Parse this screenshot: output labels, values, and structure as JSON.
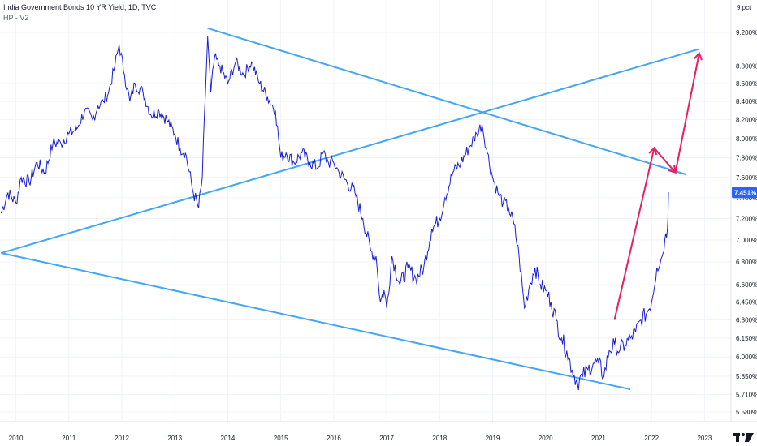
{
  "header": {
    "title": "India Government Bonds 10 YR Yield, 1D, TVC",
    "indicator": "HP - V2"
  },
  "scale_label": "9 pct",
  "colors": {
    "price_line": "#1a1fd6",
    "trendline": "#42a5f5",
    "arrow": "#e91e63",
    "badge": "#2962ff",
    "grid": "#f0f3fa"
  },
  "icons": {
    "logo": "tradingview-logo-icon"
  },
  "chart_data": {
    "type": "line",
    "title": "India Government Bonds 10 YR Yield, 1D, TVC",
    "xlabel": "",
    "ylabel": "",
    "log_scale": true,
    "xlim": [
      2009.7,
      2023.5
    ],
    "ylim": [
      5.51,
      9.6
    ],
    "x_ticks": [
      2010,
      2011,
      2012,
      2013,
      2014,
      2015,
      2016,
      2017,
      2018,
      2019,
      2020,
      2021,
      2022,
      2023
    ],
    "x_tick_labels": [
      "2010",
      "2011",
      "2012",
      "2013",
      "2014",
      "2015",
      "2016",
      "2017",
      "2018",
      "2019",
      "2020",
      "2021",
      "2022",
      "2023"
    ],
    "y_ticks": [
      5.58,
      5.71,
      5.85,
      6.0,
      6.15,
      6.3,
      6.45,
      6.6,
      6.8,
      7.0,
      7.2,
      7.4,
      7.6,
      7.8,
      8.0,
      8.2,
      8.4,
      8.6,
      8.8,
      9.2
    ],
    "y_tick_labels": [
      "5.580%",
      "5.710%",
      "5.850%",
      "6.000%",
      "6.150%",
      "6.300%",
      "6.450%",
      "6.600%",
      "6.800%",
      "7.000%",
      "7.200%",
      "7.400%",
      "7.600%",
      "7.800%",
      "8.000%",
      "8.200%",
      "8.400%",
      "8.600%",
      "8.800%",
      "9.200%"
    ],
    "grid": true,
    "last_value": 7.451,
    "last_value_label": "7.451%",
    "series": [
      {
        "x": [
          2009.72,
          2009.85,
          2010.0,
          2010.1,
          2010.25,
          2010.4,
          2010.55,
          2010.7,
          2010.85,
          2011.0,
          2011.15,
          2011.3,
          2011.45,
          2011.55,
          2011.65,
          2011.75,
          2011.85,
          2011.95,
          2012.05,
          2012.15,
          2012.25,
          2012.4,
          2012.55,
          2012.7,
          2012.85,
          2013.0,
          2013.1,
          2013.2,
          2013.35,
          2013.45,
          2013.52,
          2013.58,
          2013.62,
          2013.68,
          2013.75,
          2013.85,
          2014.0,
          2014.15,
          2014.3,
          2014.45,
          2014.6,
          2014.75,
          2014.9,
          2015.0,
          2015.1,
          2015.25,
          2015.4,
          2015.55,
          2015.7,
          2015.8,
          2015.9,
          2016.0,
          2016.1,
          2016.25,
          2016.4,
          2016.55,
          2016.7,
          2016.8,
          2016.88,
          2016.95,
          2017.0,
          2017.1,
          2017.25,
          2017.4,
          2017.55,
          2017.7,
          2017.85,
          2018.0,
          2018.1,
          2018.25,
          2018.4,
          2018.55,
          2018.7,
          2018.8,
          2018.9,
          2019.0,
          2019.1,
          2019.2,
          2019.3,
          2019.4,
          2019.5,
          2019.6,
          2019.7,
          2019.8,
          2019.9,
          2020.0,
          2020.1,
          2020.2,
          2020.3,
          2020.4,
          2020.5,
          2020.6,
          2020.7,
          2020.8,
          2020.9,
          2021.0,
          2021.1,
          2021.2,
          2021.3,
          2021.4,
          2021.5,
          2021.6,
          2021.7,
          2021.8,
          2021.9,
          2022.0,
          2022.1,
          2022.2,
          2022.25,
          2022.3,
          2022.32
        ],
        "values": [
          7.25,
          7.45,
          7.35,
          7.6,
          7.55,
          7.75,
          7.65,
          7.95,
          7.95,
          8.05,
          8.1,
          8.3,
          8.2,
          8.35,
          8.4,
          8.5,
          8.75,
          9.05,
          8.7,
          8.4,
          8.6,
          8.5,
          8.25,
          8.3,
          8.2,
          8.05,
          7.9,
          7.85,
          7.45,
          7.3,
          7.6,
          8.5,
          9.15,
          8.5,
          8.9,
          8.8,
          8.6,
          8.85,
          8.7,
          8.85,
          8.6,
          8.45,
          8.3,
          7.8,
          7.85,
          7.75,
          7.85,
          7.75,
          7.7,
          7.85,
          7.75,
          7.75,
          7.65,
          7.55,
          7.45,
          7.2,
          6.9,
          6.85,
          6.45,
          6.55,
          6.4,
          6.85,
          6.6,
          6.75,
          6.65,
          6.75,
          7.1,
          7.2,
          7.4,
          7.65,
          7.75,
          7.9,
          8.05,
          8.15,
          7.85,
          7.6,
          7.45,
          7.35,
          7.3,
          7.15,
          6.85,
          6.4,
          6.6,
          6.75,
          6.6,
          6.55,
          6.45,
          6.3,
          6.15,
          6.05,
          5.9,
          5.8,
          5.85,
          5.9,
          5.95,
          5.95,
          5.85,
          6.05,
          6.1,
          6.05,
          6.1,
          6.15,
          6.2,
          6.3,
          6.35,
          6.45,
          6.75,
          6.85,
          7.0,
          7.1,
          7.451
        ],
        "line_style": "solid"
      }
    ],
    "trendlines": [
      {
        "x": [
          2013.62,
          2022.65
        ],
        "values": [
          9.25,
          7.63
        ]
      },
      {
        "x": [
          2009.72,
          2022.9
        ],
        "values": [
          6.88,
          9.0
        ]
      },
      {
        "x": [
          2009.72,
          2021.6
        ],
        "values": [
          6.88,
          5.75
        ]
      }
    ],
    "arrows": [
      {
        "x": [
          2021.3,
          2022.05
        ],
        "values": [
          6.3,
          7.9
        ]
      },
      {
        "x": [
          2022.05,
          2022.45
        ],
        "values": [
          7.9,
          7.65
        ]
      },
      {
        "x": [
          2022.45,
          2022.9
        ],
        "values": [
          7.65,
          8.95
        ]
      }
    ]
  }
}
